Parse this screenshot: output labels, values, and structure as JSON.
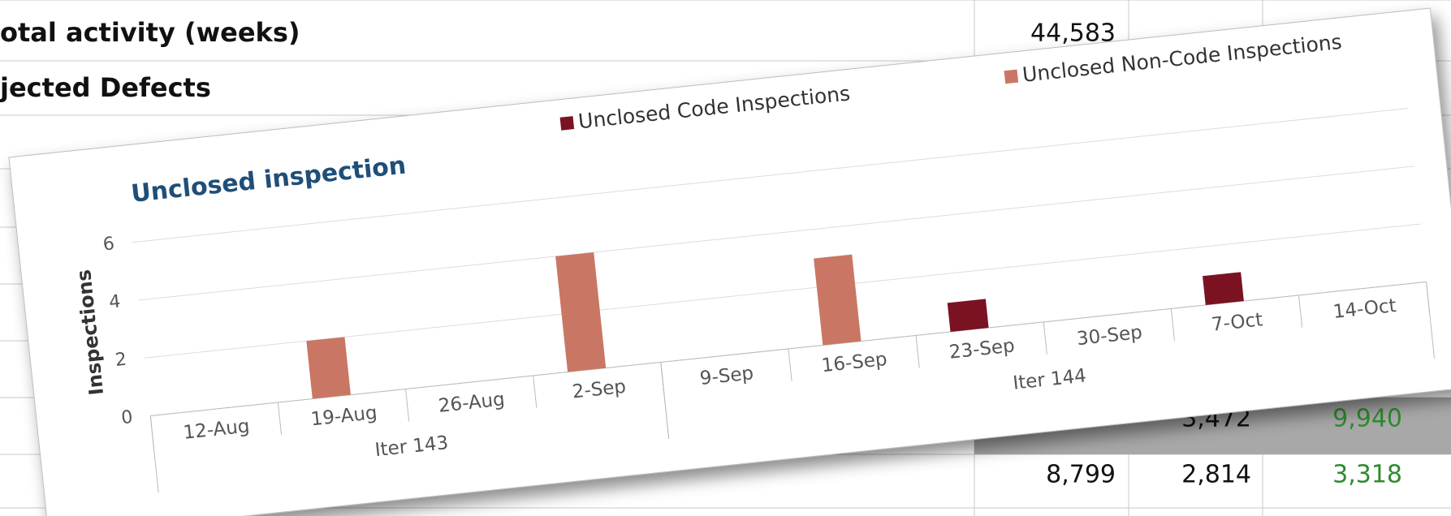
{
  "sheet": {
    "rows": [
      {
        "label": "otal activity (weeks)",
        "cells": [
          "44,583"
        ]
      },
      {
        "label": "jected Defects",
        "cells": []
      },
      {
        "label": "",
        "cells": [
          "3,472",
          "9,940"
        ]
      },
      {
        "label": "",
        "cells": [
          "8,799",
          "2,814",
          "3,318"
        ]
      }
    ]
  },
  "chart_data": {
    "type": "bar",
    "title": "Unclosed inspection",
    "y_label": "Inspections",
    "categories": [
      "12-Aug",
      "19-Aug",
      "26-Aug",
      "2-Sep",
      "9-Sep",
      "16-Sep",
      "23-Sep",
      "30-Sep",
      "7-Oct",
      "14-Oct"
    ],
    "category_groups": [
      {
        "label": "Iter 143",
        "span": 4
      },
      {
        "label": "Iter 144",
        "span": 6
      }
    ],
    "series": [
      {
        "name": "Unclosed Code Inspections",
        "color": "#7b1222",
        "values": [
          null,
          null,
          null,
          null,
          null,
          null,
          1,
          null,
          1,
          null
        ]
      },
      {
        "name": "Unclosed Non-Code Inspections",
        "color": "#c97764",
        "values": [
          null,
          2,
          null,
          4,
          null,
          3,
          null,
          null,
          null,
          null
        ]
      }
    ],
    "ylim": [
      0,
      6
    ],
    "yticks": [
      0,
      2,
      4,
      6
    ],
    "grid": true
  }
}
